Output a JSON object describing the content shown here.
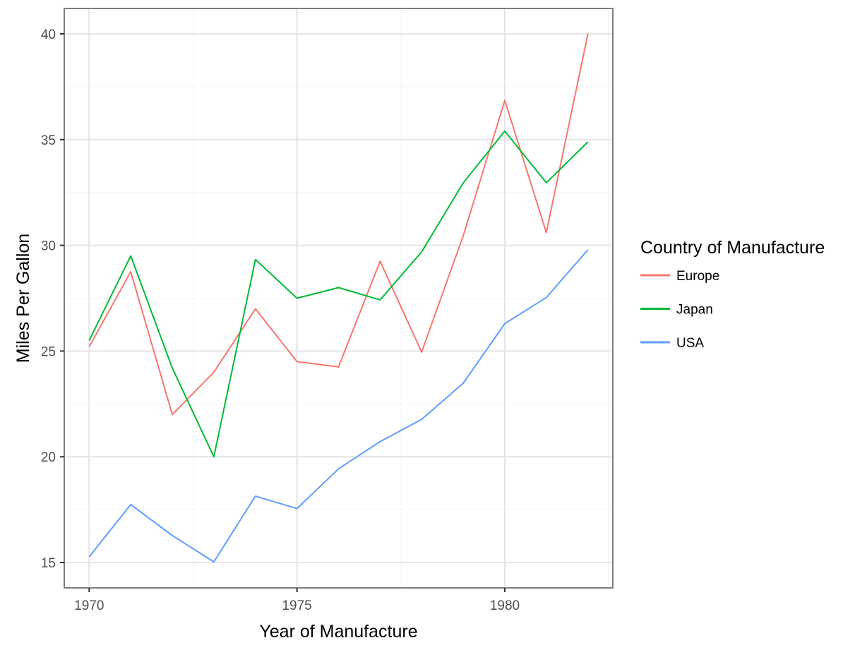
{
  "chart_data": {
    "type": "line",
    "title": "",
    "xlabel": "Year of Manufacture",
    "ylabel": "Miles Per Gallon",
    "x": [
      1970,
      1971,
      1972,
      1973,
      1974,
      1975,
      1976,
      1977,
      1978,
      1979,
      1980,
      1981,
      1982
    ],
    "xlim": [
      1969.4,
      1982.6
    ],
    "ylim": [
      13.8,
      41.2
    ],
    "x_ticks": [
      1970,
      1975,
      1980
    ],
    "x_tick_labels": [
      "1970",
      "1975",
      "1980"
    ],
    "y_ticks": [
      15,
      20,
      25,
      30,
      35,
      40
    ],
    "y_tick_labels": [
      "15",
      "20",
      "25",
      "30",
      "35",
      "40"
    ],
    "grid": true,
    "legend": {
      "title": "Country of Manufacture",
      "position": "right"
    },
    "series": [
      {
        "name": "Europe",
        "color": "#f8766d",
        "values": [
          25.2,
          28.75,
          22.0,
          24.0,
          27.0,
          24.5,
          24.25,
          29.25,
          24.95,
          30.45,
          36.85,
          30.6,
          40.0
        ]
      },
      {
        "name": "Japan",
        "color": "#00ba38",
        "values": [
          25.5,
          29.5,
          24.2,
          20.0,
          29.33,
          27.5,
          28.0,
          27.42,
          29.69,
          32.95,
          35.4,
          32.96,
          34.89
        ]
      },
      {
        "name": "USA",
        "color": "#619cff",
        "values": [
          15.27,
          17.74,
          16.28,
          15.03,
          18.14,
          17.55,
          19.43,
          20.72,
          21.77,
          23.48,
          26.3,
          27.53,
          29.79
        ]
      }
    ]
  }
}
